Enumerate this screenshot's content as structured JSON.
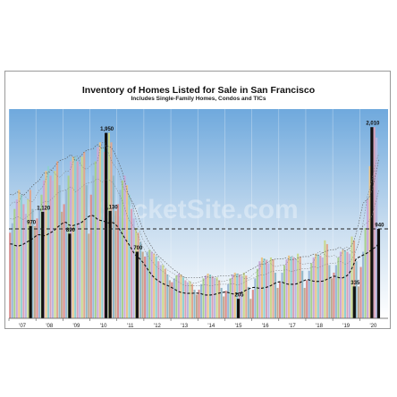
{
  "chart_data": {
    "type": "bar",
    "title": "Inventory of Homes Listed for Sale in San Francisco",
    "subtitle": "Includes Single-Family Homes, Condos and TICs",
    "xlabel": "",
    "ylabel": "",
    "watermark": "SocketSite.com",
    "ylim": [
      0,
      2200
    ],
    "x_tick_labels": [
      "'07",
      "'08",
      "'09",
      "'10",
      "'11",
      "'12",
      "'13",
      "'14",
      "'15",
      "'16",
      "'17",
      "'18",
      "'19",
      "'20"
    ],
    "reference_line_value": 940,
    "highlighted": [
      {
        "x": 2007.8,
        "value": 970,
        "label": "970"
      },
      {
        "x": 2008.25,
        "value": 1120,
        "label": "1,120"
      },
      {
        "x": 2009.25,
        "value": 890,
        "label": "890"
      },
      {
        "x": 2010.6,
        "value": 1950,
        "label": "1,950"
      },
      {
        "x": 2010.75,
        "value": 1130,
        "label": "1,130"
      },
      {
        "x": 2011.75,
        "value": 700,
        "label": "700"
      },
      {
        "x": 2015.5,
        "value": 205,
        "label": "205"
      },
      {
        "x": 2019.8,
        "value": 335,
        "label": "335"
      },
      {
        "x": 2020.45,
        "value": 2010,
        "label": "2,010"
      },
      {
        "x": 2020.7,
        "value": 940,
        "label": "940"
      }
    ],
    "monthly_values": [
      900,
      1000,
      1150,
      1250,
      1350,
      1300,
      1200,
      1100,
      1250,
      1350,
      1150,
      970,
      1050,
      1150,
      1300,
      1450,
      1550,
      1600,
      1500,
      1450,
      1550,
      1650,
      1400,
      1120,
      1200,
      1350,
      1500,
      1650,
      1700,
      1700,
      1650,
      1600,
      1700,
      1750,
      1400,
      890,
      1300,
      1500,
      1650,
      1800,
      1850,
      1800,
      1750,
      1700,
      1950,
      1850,
      1500,
      1130,
      1200,
      1350,
      1450,
      1500,
      1400,
      1300,
      1150,
      1050,
      950,
      900,
      800,
      700,
      650,
      700,
      720,
      700,
      680,
      650,
      600,
      560,
      560,
      520,
      460,
      400,
      380,
      420,
      450,
      470,
      460,
      430,
      400,
      380,
      390,
      360,
      300,
      250,
      300,
      360,
      420,
      450,
      470,
      460,
      440,
      420,
      430,
      400,
      320,
      230,
      290,
      360,
      420,
      460,
      480,
      470,
      460,
      440,
      480,
      450,
      330,
      205,
      300,
      420,
      520,
      600,
      640,
      630,
      610,
      580,
      640,
      620,
      480,
      320,
      380,
      480,
      560,
      620,
      660,
      650,
      640,
      620,
      680,
      650,
      500,
      320,
      400,
      500,
      580,
      640,
      680,
      670,
      660,
      640,
      820,
      780,
      560,
      420,
      480,
      560,
      640,
      700,
      720,
      710,
      700,
      680,
      860,
      820,
      600,
      335,
      540,
      700,
      950,
      1250,
      1600,
      1800,
      2010,
      1900,
      940
    ]
  }
}
